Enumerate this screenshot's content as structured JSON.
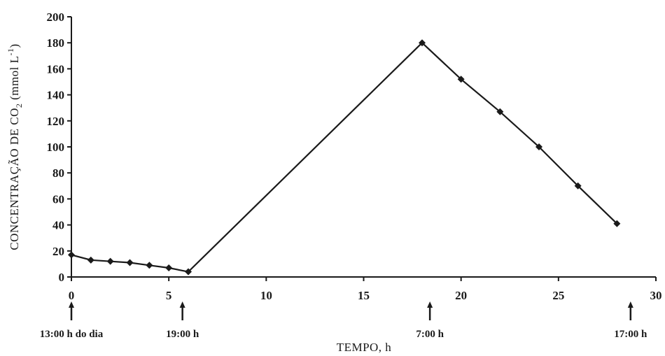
{
  "chart_data": {
    "type": "line",
    "xlabel": "TEMPO, h",
    "ylabel": "CONCENTRAÇÃO DE CO",
    "ylabel_sub": "2",
    "ylabel_unit": " (mmol L",
    "ylabel_sup": "-1",
    "ylabel_close": ")",
    "xlim": [
      0,
      30
    ],
    "ylim": [
      0,
      200
    ],
    "xticks": [
      0,
      5,
      10,
      15,
      20,
      25,
      30
    ],
    "yticks": [
      0,
      20,
      40,
      60,
      80,
      100,
      120,
      140,
      160,
      180,
      200
    ],
    "grid": false,
    "series": [
      {
        "x": [
          0,
          1,
          2,
          3,
          4,
          5,
          6,
          18,
          20,
          22,
          24,
          26,
          28
        ],
        "values": [
          17,
          13,
          12,
          11,
          9,
          7,
          4,
          180,
          152,
          127,
          100,
          70,
          41
        ]
      }
    ],
    "time_markers": [
      {
        "x": 0,
        "label": "13:00 h do dia"
      },
      {
        "x": 5.7,
        "label": "19:00 h"
      },
      {
        "x": 18.4,
        "label": "7:00 h"
      },
      {
        "x": 28.7,
        "label": "17:00 h"
      }
    ]
  }
}
